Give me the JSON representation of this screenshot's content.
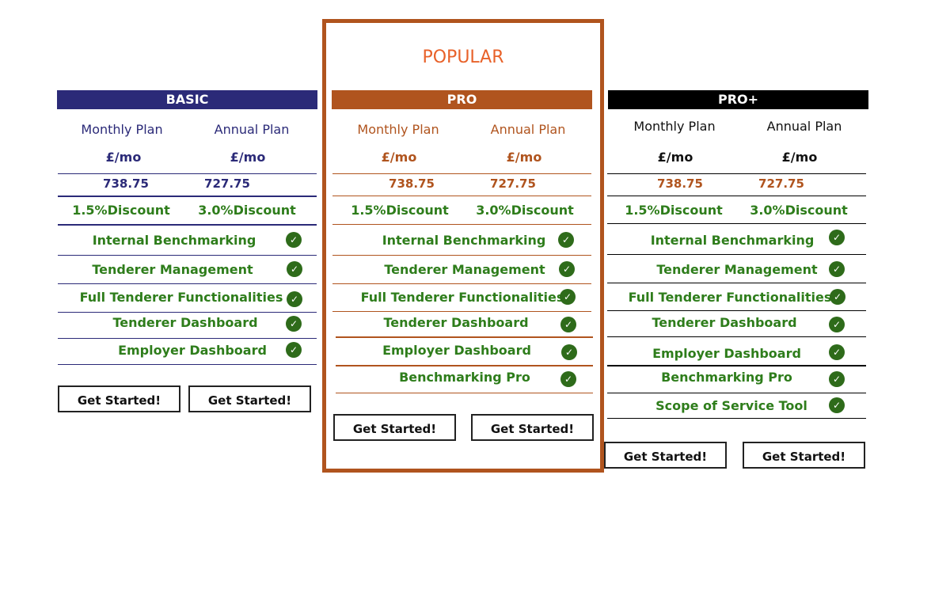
{
  "colors": {
    "basic": "#2b2a78",
    "pro": "#b0541e",
    "popular": "#e8622a",
    "proplus": "#000000",
    "feature_green": "#2e7d1b",
    "check_green": "#2e6b1a"
  },
  "popular_label": "POPULAR",
  "basic": {
    "title": "BASIC",
    "monthly_label": "Monthly Plan",
    "annual_label": "Annual Plan",
    "monthly_unit": "£/mo",
    "annual_unit": "£/mo",
    "monthly_price": "738.75",
    "annual_price": "727.75",
    "monthly_discount": "1.5%Discount",
    "annual_discount": "3.0%Discount",
    "features": [
      "Internal Benchmarking",
      "Tenderer Management",
      "Full Tenderer  Functionalities",
      "Tenderer Dashboard",
      "Employer Dashboard"
    ],
    "btn_monthly": "Get Started!",
    "btn_annual": "Get Started!"
  },
  "pro": {
    "title": "PRO",
    "monthly_label": "Monthly Plan",
    "annual_label": "Annual Plan",
    "monthly_unit": "£/mo",
    "annual_unit": "£/mo",
    "monthly_price": "738.75",
    "annual_price": "727.75",
    "monthly_discount": "1.5%Discount",
    "annual_discount": "3.0%Discount",
    "features": [
      "Internal Benchmarking",
      "Tenderer Management",
      "Full Tenderer  Functionalities",
      "Tenderer Dashboard",
      "Employer Dashboard",
      "Benchmarking Pro"
    ],
    "btn_monthly": "Get Started!",
    "btn_annual": "Get Started!"
  },
  "proplus": {
    "title": "PRO+",
    "monthly_label": "Monthly Plan",
    "annual_label": "Annual Plan",
    "monthly_unit": "£/mo",
    "annual_unit": "£/mo",
    "monthly_price": "738.75",
    "annual_price": "727.75",
    "monthly_discount": "1.5%Discount",
    "annual_discount": "3.0%Discount",
    "features": [
      "Internal Benchmarking",
      "Tenderer Management",
      "Full Tenderer  Functionalities",
      "Tenderer Dashboard",
      "Employer Dashboard",
      "Benchmarking Pro",
      "Scope of Service Tool"
    ],
    "btn_monthly": "Get Started!",
    "btn_annual": "Get Started!"
  }
}
